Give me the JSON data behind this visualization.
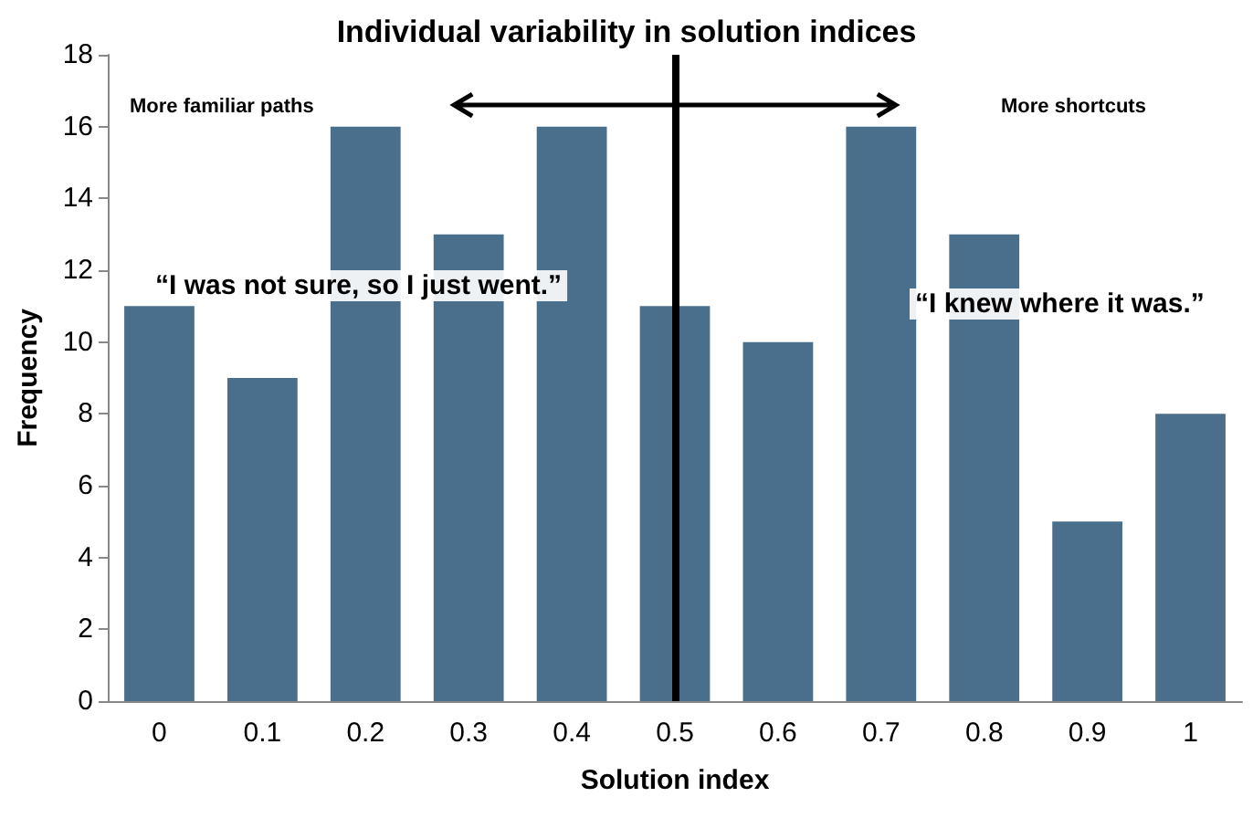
{
  "chart_data": {
    "type": "bar",
    "title": "Individual variability in solution indices",
    "xlabel": "Solution index",
    "ylabel": "Frequency",
    "categories": [
      "0",
      "0.1",
      "0.2",
      "0.3",
      "0.4",
      "0.5",
      "0.6",
      "0.7",
      "0.8",
      "0.9",
      "1"
    ],
    "values": [
      11,
      9,
      16,
      13,
      16,
      11,
      10,
      16,
      13,
      5,
      8
    ],
    "color": "#4a6f8c",
    "ylim": [
      0,
      18
    ],
    "yticks": [
      0,
      2,
      4,
      6,
      8,
      10,
      12,
      14,
      16,
      18
    ],
    "grid": false,
    "ref_lines": [
      {
        "axis": "x",
        "value": "0.5",
        "color": "#000000"
      }
    ],
    "annotations": [
      "More familiar paths",
      "More shortcuts",
      "“I was not sure, so I just went.”",
      "“I knew where it was.”"
    ]
  }
}
